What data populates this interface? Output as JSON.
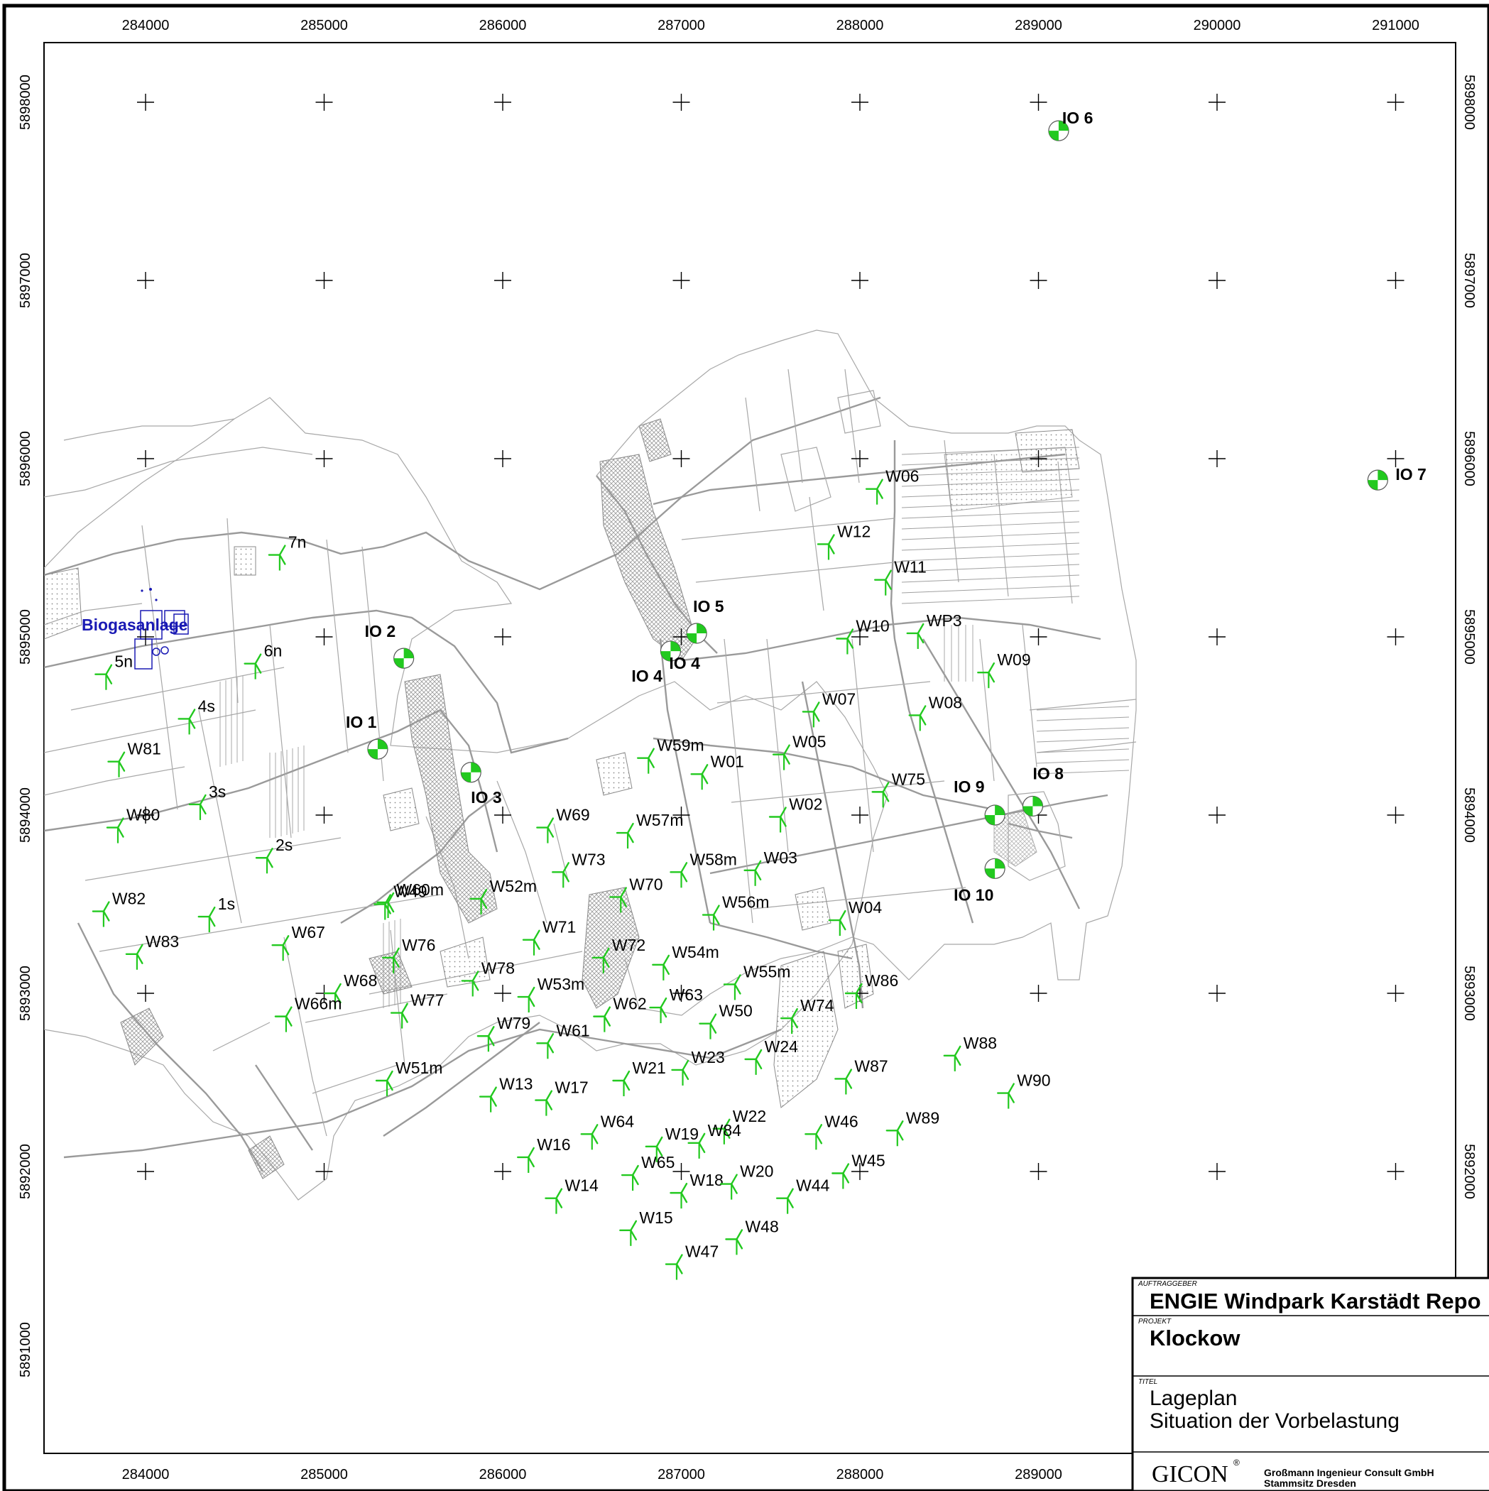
{
  "map": {
    "x_ticks": [
      "284000",
      "285000",
      "286000",
      "287000",
      "288000",
      "289000",
      "290000",
      "291000"
    ],
    "x_ticks_bottom": [
      "284000",
      "285000",
      "286000",
      "287000",
      "288000",
      "289000"
    ],
    "y_ticks": [
      "5898000",
      "5897000",
      "5896000",
      "5895000",
      "5894000",
      "5893000",
      "5892000",
      "5891000"
    ],
    "biogas_label": "Biogasanlage",
    "turbine_color": "#22c91f",
    "io_color": "#22c91f",
    "turbines": [
      {
        "label": "7n",
        "e": 284751,
        "n": 5895460
      },
      {
        "label": "6n",
        "e": 284615,
        "n": 5894850
      },
      {
        "label": "5n",
        "e": 283779,
        "n": 5894790
      },
      {
        "label": "4s",
        "e": 284245,
        "n": 5894540
      },
      {
        "label": "W81",
        "e": 283851,
        "n": 5894300
      },
      {
        "label": "3s",
        "e": 284306,
        "n": 5894060
      },
      {
        "label": "W80",
        "e": 283845,
        "n": 5893930
      },
      {
        "label": "2s",
        "e": 284680,
        "n": 5893760
      },
      {
        "label": "1s",
        "e": 284357,
        "n": 5893430
      },
      {
        "label": "W82",
        "e": 283765,
        "n": 5893460
      },
      {
        "label": "W83",
        "e": 283952,
        "n": 5893220
      },
      {
        "label": "W67",
        "e": 284770,
        "n": 5893270
      },
      {
        "label": "W49",
        "e": 285341,
        "n": 5893500
      },
      {
        "label": "W60m",
        "e": 285358,
        "n": 5893510
      },
      {
        "label": "W76",
        "e": 285388,
        "n": 5893200
      },
      {
        "label": "W68",
        "e": 285062,
        "n": 5893000
      },
      {
        "label": "W66m",
        "e": 284787,
        "n": 5892870
      },
      {
        "label": "W77",
        "e": 285436,
        "n": 5892890
      },
      {
        "label": "W51m",
        "e": 285352,
        "n": 5892510
      },
      {
        "label": "W52m",
        "e": 285879,
        "n": 5893530
      },
      {
        "label": "W78",
        "e": 285832,
        "n": 5893070
      },
      {
        "label": "W53m",
        "e": 286146,
        "n": 5892980
      },
      {
        "label": "W79",
        "e": 285920,
        "n": 5892760
      },
      {
        "label": "W61",
        "e": 286252,
        "n": 5892720
      },
      {
        "label": "W13",
        "e": 285933,
        "n": 5892420
      },
      {
        "label": "W17",
        "e": 286244,
        "n": 5892400
      },
      {
        "label": "W16",
        "e": 286144,
        "n": 5892080
      },
      {
        "label": "W14",
        "e": 286300,
        "n": 5891850
      },
      {
        "label": "W71",
        "e": 286175,
        "n": 5893300
      },
      {
        "label": "W73",
        "e": 286339,
        "n": 5893680
      },
      {
        "label": "W69",
        "e": 286252,
        "n": 5893930
      },
      {
        "label": "W70",
        "e": 286661,
        "n": 5893540
      },
      {
        "label": "W72",
        "e": 286564,
        "n": 5893200
      },
      {
        "label": "W62",
        "e": 286570,
        "n": 5892870
      },
      {
        "label": "W63",
        "e": 286885,
        "n": 5892920
      },
      {
        "label": "W64",
        "e": 286500,
        "n": 5892210
      },
      {
        "label": "W21",
        "e": 286678,
        "n": 5892510
      },
      {
        "label": "W65",
        "e": 286728,
        "n": 5891980
      },
      {
        "label": "W15",
        "e": 286717,
        "n": 5891670
      },
      {
        "label": "W19",
        "e": 286862,
        "n": 5892140
      },
      {
        "label": "W18",
        "e": 287000,
        "n": 5891880
      },
      {
        "label": "W47",
        "e": 286974,
        "n": 5891480
      },
      {
        "label": "W48",
        "e": 287310,
        "n": 5891620
      },
      {
        "label": "W57m",
        "e": 286700,
        "n": 5893900
      },
      {
        "label": "W59m",
        "e": 286816,
        "n": 5894320
      },
      {
        "label": "W01",
        "e": 287116,
        "n": 5894230
      },
      {
        "label": "W58m",
        "e": 287000,
        "n": 5893680
      },
      {
        "label": "W54m",
        "e": 286900,
        "n": 5893160
      },
      {
        "label": "W56m",
        "e": 287181,
        "n": 5893440
      },
      {
        "label": "W55m",
        "e": 287300,
        "n": 5893050
      },
      {
        "label": "W50",
        "e": 287163,
        "n": 5892830
      },
      {
        "label": "W23",
        "e": 287008,
        "n": 5892570
      },
      {
        "label": "W22",
        "e": 287240,
        "n": 5892240
      },
      {
        "label": "W84",
        "e": 287100,
        "n": 5892160
      },
      {
        "label": "W20",
        "e": 287281,
        "n": 5891930
      },
      {
        "label": "W24",
        "e": 287418,
        "n": 5892630
      },
      {
        "label": "W74",
        "e": 287619,
        "n": 5892860
      },
      {
        "label": "W86",
        "e": 287980,
        "n": 5893000
      },
      {
        "label": "W46",
        "e": 287755,
        "n": 5892210
      },
      {
        "label": "W44",
        "e": 287595,
        "n": 5891850
      },
      {
        "label": "W45",
        "e": 287906,
        "n": 5891990
      },
      {
        "label": "W87",
        "e": 287922,
        "n": 5892520
      },
      {
        "label": "W89",
        "e": 288210,
        "n": 5892230
      },
      {
        "label": "W88",
        "e": 288532,
        "n": 5892650
      },
      {
        "label": "W90",
        "e": 288832,
        "n": 5892440
      },
      {
        "label": "W03",
        "e": 287414,
        "n": 5893690
      },
      {
        "label": "W04",
        "e": 287888,
        "n": 5893410
      },
      {
        "label": "W02",
        "e": 287555,
        "n": 5893990
      },
      {
        "label": "W05",
        "e": 287575,
        "n": 5894340
      },
      {
        "label": "W07",
        "e": 287741,
        "n": 5894580
      },
      {
        "label": "W75",
        "e": 288130,
        "n": 5894130
      },
      {
        "label": "W08",
        "e": 288337,
        "n": 5894560
      },
      {
        "label": "W09",
        "e": 288721,
        "n": 5894800
      },
      {
        "label": "W10",
        "e": 287930,
        "n": 5894990
      },
      {
        "label": "WP3",
        "e": 288325,
        "n": 5895020
      },
      {
        "label": "W11",
        "e": 288144,
        "n": 5895320
      },
      {
        "label": "W12",
        "e": 287825,
        "n": 5895520
      },
      {
        "label": "W06",
        "e": 288096,
        "n": 5895830
      }
    ],
    "receptors": [
      {
        "label": "IO 1",
        "e": 285300,
        "n": 5894370,
        "lx": -45,
        "ly": -30
      },
      {
        "label": "IO 2",
        "e": 285446,
        "n": 5894880,
        "lx": -55,
        "ly": -30
      },
      {
        "label": "IO 3",
        "e": 285822,
        "n": 5894240,
        "lx": 0,
        "ly": 43
      },
      {
        "label": "IO 4",
        "e": 286940,
        "n": 5894920,
        "lx": -55,
        "ly": 43
      },
      {
        "label": "IO 4",
        "e": 286940,
        "n": 5894920,
        "lx": -2,
        "ly": 25
      },
      {
        "label": "IO 5",
        "e": 287086,
        "n": 5895020,
        "lx": -5,
        "ly": -30
      },
      {
        "label": "IO 6",
        "e": 289113,
        "n": 5897840,
        "lx": 5,
        "ly": -10
      },
      {
        "label": "IO 7",
        "e": 290900,
        "n": 5895880,
        "lx": 25,
        "ly": 0
      },
      {
        "label": "IO 8",
        "e": 288968,
        "n": 5894050,
        "lx": 0,
        "ly": -38
      },
      {
        "label": "IO 9",
        "e": 288756,
        "n": 5894000,
        "lx": -58,
        "ly": -32
      },
      {
        "label": "IO 10",
        "e": 288756,
        "n": 5893700,
        "lx": -58,
        "ly": 45
      }
    ],
    "title_block": {
      "client_caption": "AUFTRAGGEBER",
      "client": "ENGIE Windpark Karstädt Repo",
      "project_caption": "PROJEKT",
      "project": "Klockow",
      "title_caption": "TITEL",
      "title_line1": "Lageplan",
      "title_line2": "Situation der Vorbelastung",
      "logo": "GICON",
      "logo_mark": "®",
      "company_line1": "Großmann Ingenieur Consult GmbH",
      "company_line2": "Stammsitz Dresden"
    }
  }
}
